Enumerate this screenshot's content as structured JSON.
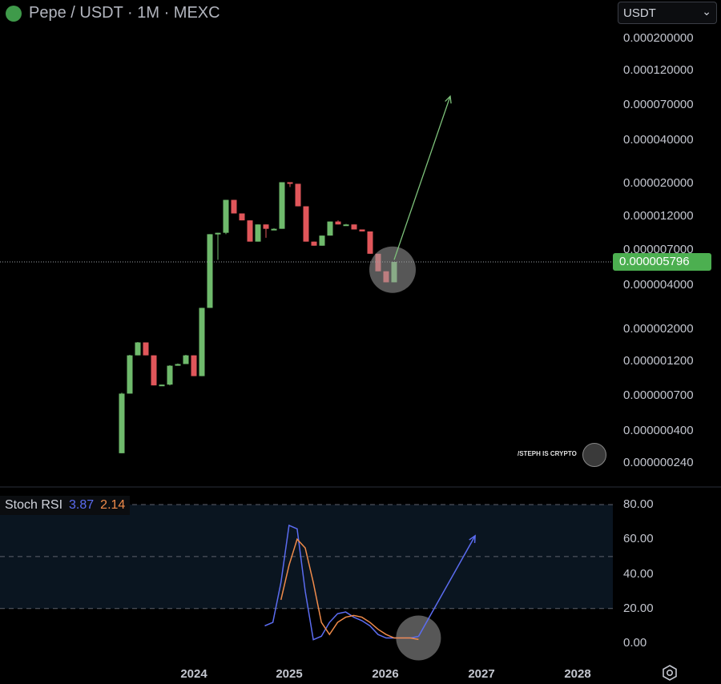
{
  "header": {
    "title": "Pepe / USDT · 1M · MEXC",
    "currency": "USDT",
    "logo_icon": "pepe-logo-icon",
    "currency_icon": "chevron-down-icon"
  },
  "price_axis": {
    "ticks": [
      "0.000200000",
      "0.000120000",
      "0.000070000",
      "0.000040000",
      "0.000020000",
      "0.000012000",
      "0.000007000",
      "0.000004000",
      "0.000002000",
      "0.000001200",
      "0.000000700",
      "0.000000400",
      "0.000000240"
    ],
    "current_price": "0.000005796",
    "current_price_color": "#4caf50"
  },
  "time_axis": {
    "ticks": [
      "2024",
      "2025",
      "2026",
      "2027",
      "2028"
    ]
  },
  "indicator": {
    "name": "Stoch RSI",
    "k_value": "3.87",
    "d_value": "2.14",
    "k_color": "#5b6cf0",
    "d_color": "#f08b4a",
    "ticks": [
      "80.00",
      "60.00",
      "40.00",
      "20.00",
      "0.00"
    ]
  },
  "watermark": {
    "text": "/STEPH IS CRYPTO",
    "avatar_icon": "avatar-icon"
  },
  "settings_icon": "settings-icon",
  "colors": {
    "up": "#6fba6c",
    "down": "#e0565a",
    "projection": "#7ec27b",
    "highlight": "#9e9e9e"
  },
  "chart_data": [
    {
      "type": "candlestick",
      "title": "Pepe / USDT · 1M · MEXC",
      "scale": "log",
      "ylim": [
        2.2e-07,
        0.00024
      ],
      "series": [
        {
          "ohlc": [
            [
              2.8e-07,
              7.2e-07,
              2.8e-07,
              7.3e-07
            ],
            [
              7.2e-07,
              1.32e-06,
              7.2e-07,
              1.33e-06
            ],
            [
              1.32e-06,
              1.62e-06,
              1.32e-06,
              1.63e-06
            ],
            [
              1.62e-06,
              1.32e-06,
              1.32e-06,
              1.62e-06
            ],
            [
              1.32e-06,
              8.2e-07,
              8.2e-07,
              1.32e-06
            ],
            [
              8.2e-07,
              8.3e-07,
              8.2e-07,
              8.3e-07
            ],
            [
              8.3e-07,
              1.12e-06,
              8.2e-07,
              1.13e-06
            ],
            [
              1.12e-06,
              1.15e-06,
              1.12e-06,
              1.16e-06
            ],
            [
              1.15e-06,
              1.32e-06,
              1.15e-06,
              1.33e-06
            ],
            [
              1.32e-06,
              9.5e-07,
              9.5e-07,
              1.32e-06
            ],
            [
              9.5e-07,
              2.8e-06,
              9.5e-07,
              2.8e-06
            ],
            [
              2.8e-06,
              9e-06,
              2.8e-06,
              9e-06
            ],
            [
              9e-06,
              9.2e-06,
              6e-06,
              9.2e-06
            ],
            [
              9.2e-06,
              1.55e-05,
              9e-06,
              1.55e-05
            ],
            [
              1.55e-05,
              1.25e-05,
              1.25e-05,
              1.55e-05
            ],
            [
              1.25e-05,
              1.12e-05,
              1.12e-05,
              1.25e-05
            ],
            [
              1.12e-05,
              8e-06,
              8e-06,
              1.12e-05
            ],
            [
              8e-06,
              1.05e-05,
              8e-06,
              1.05e-05
            ],
            [
              1.05e-05,
              9.8e-06,
              8.5e-06,
              1.05e-05
            ],
            [
              9.8e-06,
              9.8e-06,
              9.8e-06,
              9.9e-06
            ],
            [
              9.8e-06,
              2.05e-05,
              9.8e-06,
              2.05e-05
            ],
            [
              2.05e-05,
              2e-05,
              1.9e-05,
              2.05e-05
            ],
            [
              2e-05,
              1.4e-05,
              1.4e-05,
              2e-05
            ],
            [
              1.4e-05,
              8e-06,
              8e-06,
              1.4e-05
            ],
            [
              8e-06,
              7.5e-06,
              7.5e-06,
              8e-06
            ],
            [
              7.5e-06,
              8.8e-06,
              7.5e-06,
              8.8e-06
            ],
            [
              8.8e-06,
              1.1e-05,
              8.8e-06,
              1.1e-05
            ],
            [
              1.1e-05,
              1.05e-05,
              1.05e-05,
              1.12e-05
            ],
            [
              1.05e-05,
              1.05e-05,
              1.05e-05,
              1.06e-05
            ],
            [
              1.05e-05,
              9.7e-06,
              9.7e-06,
              1.05e-05
            ],
            [
              9.7e-06,
              9.4e-06,
              9.4e-06,
              9.7e-06
            ],
            [
              9.4e-06,
              6.6e-06,
              6.6e-06,
              9.4e-06
            ],
            [
              6.6e-06,
              5e-06,
              5e-06,
              6.6e-06
            ],
            [
              5e-06,
              4.2e-06,
              4.2e-06,
              5e-06
            ],
            [
              4.2e-06,
              5.8e-06,
              4.2e-06,
              5.8e-06
            ]
          ]
        }
      ],
      "projection": {
        "from_index": 34,
        "to_index": 41,
        "to_value": 8e-05
      },
      "highlight": {
        "index": 34,
        "value": 5e-06
      },
      "current_price_line": 5.796e-06
    },
    {
      "type": "line",
      "title": "Stoch RSI",
      "ylim": [
        -5,
        85
      ],
      "bands": [
        20,
        50,
        80
      ],
      "series": [
        {
          "name": "K",
          "x_index": [
            15,
            16,
            17,
            18,
            19,
            20,
            21,
            22,
            23,
            24,
            25,
            26,
            27,
            28,
            29,
            30,
            31,
            32,
            33,
            34
          ],
          "values": [
            10,
            12,
            35,
            68,
            66,
            30,
            2,
            4,
            12,
            17,
            18,
            15,
            13,
            10,
            5,
            3,
            3,
            3,
            3,
            3.87
          ]
        },
        {
          "name": "D",
          "x_index": [
            17,
            18,
            19,
            20,
            21,
            22,
            23,
            24,
            25,
            26,
            27,
            28,
            29,
            30,
            31,
            32,
            33,
            34
          ],
          "values": [
            25,
            45,
            60,
            55,
            35,
            12,
            5,
            12,
            15,
            16,
            15,
            12,
            8,
            5,
            3,
            3,
            3,
            2.14
          ]
        }
      ],
      "projection": {
        "from_index": 34,
        "to_index": 41,
        "to_value": 62
      },
      "highlight": {
        "index": 34,
        "value": 3
      }
    }
  ]
}
